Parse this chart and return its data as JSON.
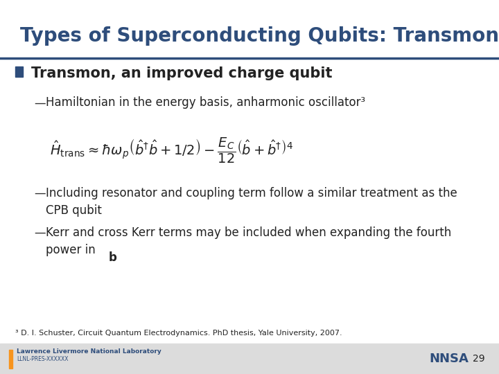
{
  "title": "Types of Superconducting Qubits: Transmon",
  "title_color": "#2E4D7B",
  "title_fontsize": 20,
  "bg_color": "#FFFFFF",
  "header_line_color": "#2E4D7B",
  "bullet_color": "#2E4D7B",
  "bullet_text": "Transmon, an improved charge qubit",
  "bullet_fontsize": 15,
  "sub_bullets": [
    "Hamiltonian in the energy basis, anharmonic oscillator³",
    "Including resonator and coupling term follow a similar treatment as the\nCPB qubit",
    "Kerr and cross Kerr terms may be included when expanding the fourth\npower in "
  ],
  "sub_bullet_fontsize": 12,
  "equation": "$\\hat{H}_{\\mathrm{trans}} \\approx \\hbar\\omega_p \\left(\\hat{b}^{\\dagger}\\hat{b} + 1/2\\right) - \\dfrac{E_C}{12} \\left(\\hat{b} + \\hat{b}^{\\dagger}\\right)^4$",
  "equation_fontsize": 14,
  "footnote": "³ D. I. Schuster, Circuit Quantum Electrodynamics. PhD thesis, Yale University, 2007.",
  "footnote_fontsize": 8,
  "footer_bg_color": "#DCDCDC",
  "footer_text": "Lawrence Livermore National Laboratory",
  "footer_subtext": "LLNL-PRES-XXXXXX",
  "page_number": "29",
  "dash_color": "#333333",
  "text_color": "#222222"
}
